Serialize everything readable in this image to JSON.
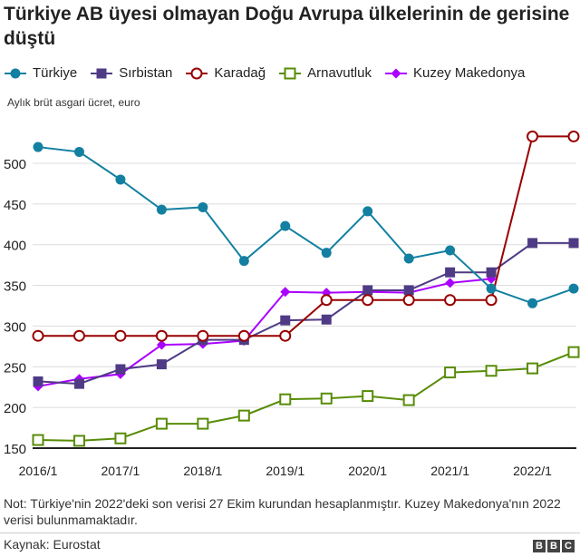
{
  "chart_data": {
    "type": "line",
    "title": "Türkiye AB üyesi olmayan Doğu Avrupa ülkelerinin de gerisine düştü",
    "subtitle": "Aylık brüt asgari ücret, euro",
    "x": [
      "2016/1",
      "2016/2",
      "2017/1",
      "2017/2",
      "2018/1",
      "2018/2",
      "2019/1",
      "2019/2",
      "2020/1",
      "2020/2",
      "2021/1",
      "2021/2",
      "2022/1",
      "2022/2"
    ],
    "xtick_labels": [
      "2016/1",
      "2017/1",
      "2018/1",
      "2019/1",
      "2020/1",
      "2021/1",
      "2022/1"
    ],
    "ylim": [
      150,
      540
    ],
    "yticks": [
      150,
      200,
      250,
      300,
      350,
      400,
      450,
      500
    ],
    "grid": true,
    "legend_position": "top",
    "series": [
      {
        "name": "Türkiye",
        "color": "#1380a1",
        "marker": "circle",
        "values": [
          520,
          514,
          480,
          443,
          446,
          380,
          423,
          390,
          441,
          383,
          393,
          346,
          328,
          346
        ]
      },
      {
        "name": "Sırbistan",
        "color": "#4f3b85",
        "marker": "square",
        "values": [
          232,
          229,
          247,
          253,
          283,
          283,
          307,
          308,
          344,
          344,
          366,
          366,
          402,
          402
        ]
      },
      {
        "name": "Karadağ",
        "color": "#990000",
        "marker": "open-circle",
        "values": [
          288,
          288,
          288,
          288,
          288,
          288,
          288,
          332,
          332,
          332,
          332,
          332,
          533,
          533
        ]
      },
      {
        "name": "Arnavutluk",
        "color": "#588c07",
        "marker": "open-square",
        "values": [
          160,
          159,
          162,
          180,
          180,
          190,
          210,
          211,
          214,
          209,
          243,
          245,
          248,
          268
        ]
      },
      {
        "name": "Kuzey Makedonya",
        "color": "#aa00ff",
        "marker": "diamond",
        "values": [
          226,
          235,
          241,
          277,
          278,
          282,
          342,
          341,
          342,
          341,
          353,
          358,
          null,
          null
        ]
      }
    ]
  },
  "note": "Not: Türkiye'nin 2022'deki son verisi 27 Ekim kurundan hesaplanmıştır. Kuzey Makedonya'nın 2022 verisi bulunmamaktadır.",
  "source": "Kaynak: Eurostat",
  "logo": [
    "B",
    "B",
    "C"
  ]
}
